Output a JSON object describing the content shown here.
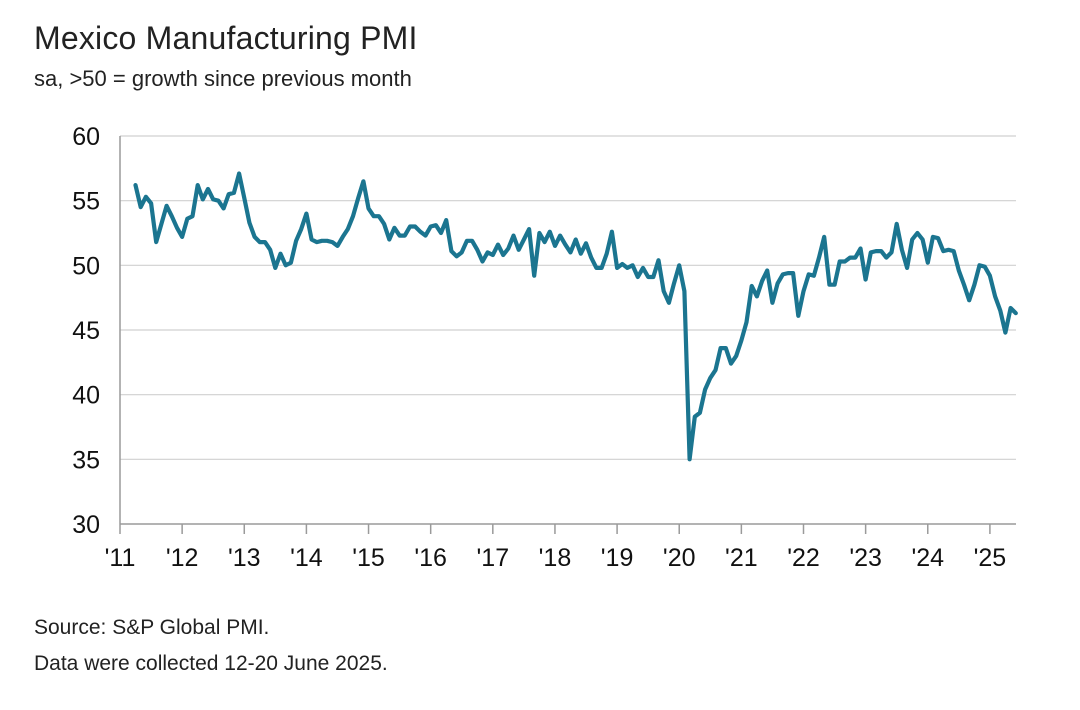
{
  "chart_data": {
    "type": "line",
    "title": "Mexico Manufacturing PMI",
    "subtitle": "sa, >50 = growth since previous month",
    "xlabel": "",
    "ylabel": "",
    "ylim": [
      30,
      60
    ],
    "yticks": [
      30,
      35,
      40,
      45,
      50,
      55,
      60
    ],
    "xlim": [
      2011.0,
      2025.42
    ],
    "xticks": [
      "'11",
      "'12",
      "'13",
      "'14",
      "'15",
      "'16",
      "'17",
      "'18",
      "'19",
      "'20",
      "'21",
      "'22",
      "'23",
      "'24",
      "'25"
    ],
    "grid": true,
    "legend": "none",
    "line_color": "#1b7590",
    "series": [
      {
        "values": [
          56.2,
          54.5,
          55.3,
          54.8,
          51.8,
          53.2,
          54.6,
          53.8,
          52.9,
          52.2,
          53.6,
          53.8,
          56.2,
          55.1,
          55.9,
          55.1,
          55.0,
          54.4,
          55.5,
          55.6,
          57.1,
          55.2,
          53.3,
          52.2,
          51.8,
          51.8,
          51.2,
          49.8,
          50.9,
          50.0,
          50.2,
          51.9,
          52.8,
          54.0,
          52.0,
          51.8,
          51.9,
          51.9,
          51.8,
          51.5,
          52.2,
          52.8,
          53.8,
          55.2,
          56.5,
          54.4,
          53.8,
          53.8,
          53.2,
          52.0,
          52.9,
          52.3,
          52.3,
          53.0,
          53.0,
          52.6,
          52.3,
          53.0,
          53.1,
          52.5,
          53.5,
          51.1,
          50.7,
          51.0,
          51.9,
          51.9,
          51.2,
          50.3,
          51.0,
          50.8,
          51.6,
          50.8,
          51.3,
          52.3,
          51.2,
          52.0,
          52.8,
          49.2,
          52.5,
          51.8,
          52.6,
          51.5,
          52.3,
          51.6,
          51.0,
          52.0,
          50.9,
          51.7,
          50.6,
          49.8,
          49.8,
          50.9,
          52.6,
          49.8,
          50.1,
          49.8,
          50.0,
          49.1,
          49.8,
          49.1,
          49.1,
          50.4,
          48.0,
          47.1,
          48.6,
          50.0,
          48.0,
          35.0,
          38.3,
          38.6,
          40.4,
          41.3,
          41.9,
          43.6,
          43.6,
          42.4,
          43.0,
          44.2,
          45.6,
          48.4,
          47.6,
          48.8,
          49.6,
          47.1,
          48.6,
          49.3,
          49.4,
          49.4,
          46.1,
          48.0,
          49.3,
          49.2,
          50.6,
          52.2,
          48.5,
          48.5,
          50.3,
          50.3,
          50.6,
          50.6,
          51.3,
          48.9,
          51.0,
          51.1,
          51.1,
          50.6,
          51.0,
          53.2,
          51.2,
          49.8,
          52.0,
          52.5,
          52.0,
          50.2,
          52.2,
          52.1,
          51.1,
          51.2,
          51.1,
          49.6,
          48.5,
          47.3,
          48.5,
          50.0,
          49.9,
          49.2,
          47.6,
          46.5,
          44.8,
          46.7,
          46.3
        ]
      }
    ]
  },
  "footer": {
    "source": "Source: S&P Global PMI.",
    "collected": "Data were collected 12-20 June 2025."
  }
}
